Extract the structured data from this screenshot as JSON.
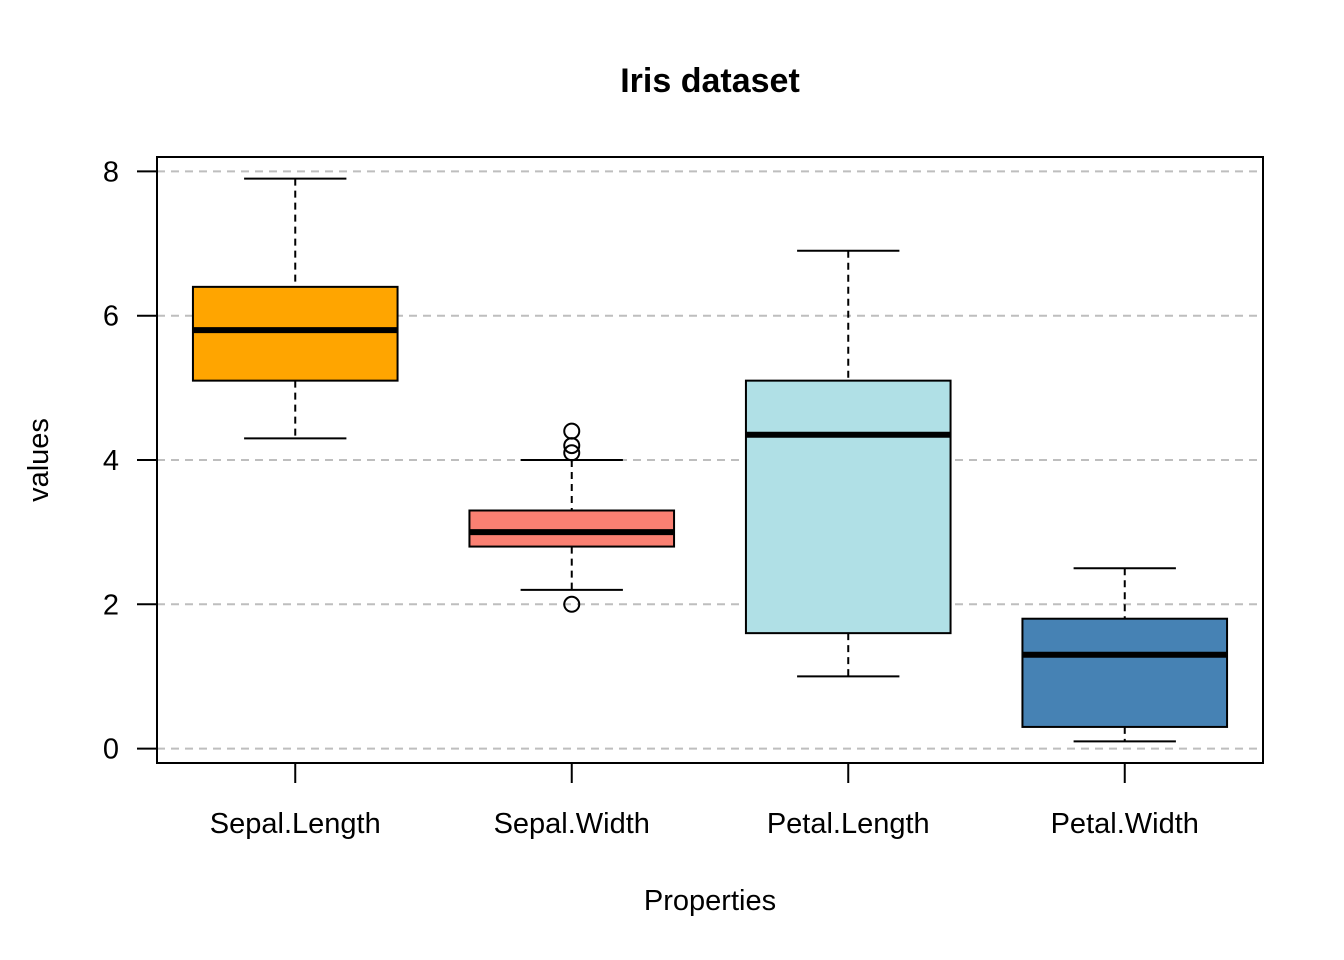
{
  "chart_data": {
    "type": "box",
    "title": "Iris dataset",
    "xlabel": "Properties",
    "ylabel": "values",
    "ylim": [
      -0.2,
      8.2
    ],
    "yticks": [
      0,
      2,
      4,
      6,
      8
    ],
    "grid": "horizontal-dashed",
    "categories": [
      "Sepal.Length",
      "Sepal.Width",
      "Petal.Length",
      "Petal.Width"
    ],
    "series": [
      {
        "category": "Sepal.Length",
        "color": "#FFA500",
        "whisker_low": 4.3,
        "q1": 5.1,
        "median": 5.8,
        "q3": 6.4,
        "whisker_high": 7.9,
        "outliers": []
      },
      {
        "category": "Sepal.Width",
        "color": "#FA8072",
        "whisker_low": 2.2,
        "q1": 2.8,
        "median": 3.0,
        "q3": 3.3,
        "whisker_high": 4.0,
        "outliers": [
          4.4,
          4.1,
          4.2,
          2.0
        ]
      },
      {
        "category": "Petal.Length",
        "color": "#B0E0E6",
        "whisker_low": 1.0,
        "q1": 1.6,
        "median": 4.35,
        "q3": 5.1,
        "whisker_high": 6.9,
        "outliers": []
      },
      {
        "category": "Petal.Width",
        "color": "#4682B4",
        "whisker_low": 0.1,
        "q1": 0.3,
        "median": 1.3,
        "q3": 1.8,
        "whisker_high": 2.5,
        "outliers": []
      }
    ]
  }
}
